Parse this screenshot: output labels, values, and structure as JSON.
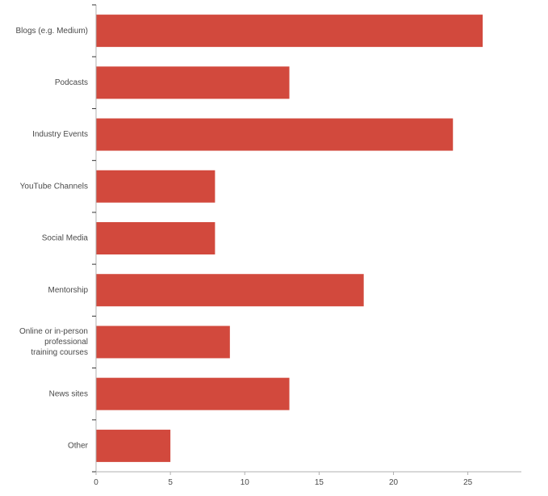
{
  "chart_data": {
    "type": "bar",
    "orientation": "horizontal",
    "title": "",
    "xlabel": "",
    "ylabel": "",
    "categories": [
      "Blogs (e.g. Medium)",
      "Podcasts",
      "Industry Events",
      "YouTube Channels",
      "Social Media",
      "Mentorship",
      "Online or in-person professional training courses",
      "News sites",
      "Other"
    ],
    "category_lines": [
      [
        "Blogs (e.g. Medium)"
      ],
      [
        "Podcasts"
      ],
      [
        "Industry Events"
      ],
      [
        "YouTube Channels"
      ],
      [
        "Social Media"
      ],
      [
        "Mentorship"
      ],
      [
        "Online or in-person",
        "professional",
        "training courses"
      ],
      [
        "News sites"
      ],
      [
        "Other"
      ]
    ],
    "values": [
      26,
      13,
      24,
      8,
      8,
      18,
      9,
      13,
      5
    ],
    "xlim": [
      0,
      28.6
    ],
    "xticks": [
      0,
      5,
      10,
      15,
      20,
      25
    ],
    "grid": false,
    "legend": "none",
    "bar_color": "#d2493d"
  }
}
